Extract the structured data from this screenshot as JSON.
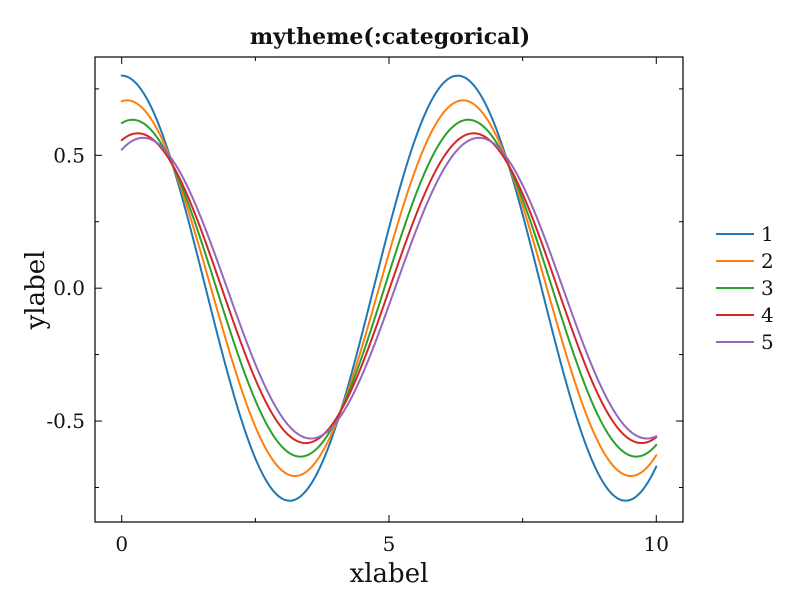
{
  "chart_data": {
    "type": "line",
    "title": "mytheme(:categorical)",
    "xlabel": "xlabel",
    "ylabel": "ylabel",
    "xlim": [
      -0.5,
      10.5
    ],
    "ylim": [
      -0.88,
      0.87
    ],
    "x_major_ticks": [
      0,
      5,
      10
    ],
    "x_tick_labels": [
      "0",
      "5",
      "10"
    ],
    "x_minor_ticks": [
      2.5,
      7.5
    ],
    "y_major_ticks": [
      0.5,
      0.0,
      -0.5
    ],
    "y_tick_labels": [
      "0.5",
      "0.0",
      "-0.5"
    ],
    "y_minor_ticks": [
      0.75,
      0.25,
      -0.25,
      -0.75
    ],
    "grid": false,
    "legend_position": "outside-right",
    "x_range": [
      0,
      10
    ],
    "sample_points": 200,
    "series": [
      {
        "name": "1",
        "color": "#1f77b4",
        "amplitude": 0.8,
        "phase": 0.0
      },
      {
        "name": "2",
        "color": "#ff7f0e",
        "amplitude": 0.707,
        "phase": 0.1
      },
      {
        "name": "3",
        "color": "#2ca02c",
        "amplitude": 0.634,
        "phase": 0.2
      },
      {
        "name": "4",
        "color": "#d62728",
        "amplitude": 0.583,
        "phase": 0.3
      },
      {
        "name": "5",
        "color": "#9467bd",
        "amplitude": 0.566,
        "phase": 0.4
      }
    ]
  }
}
